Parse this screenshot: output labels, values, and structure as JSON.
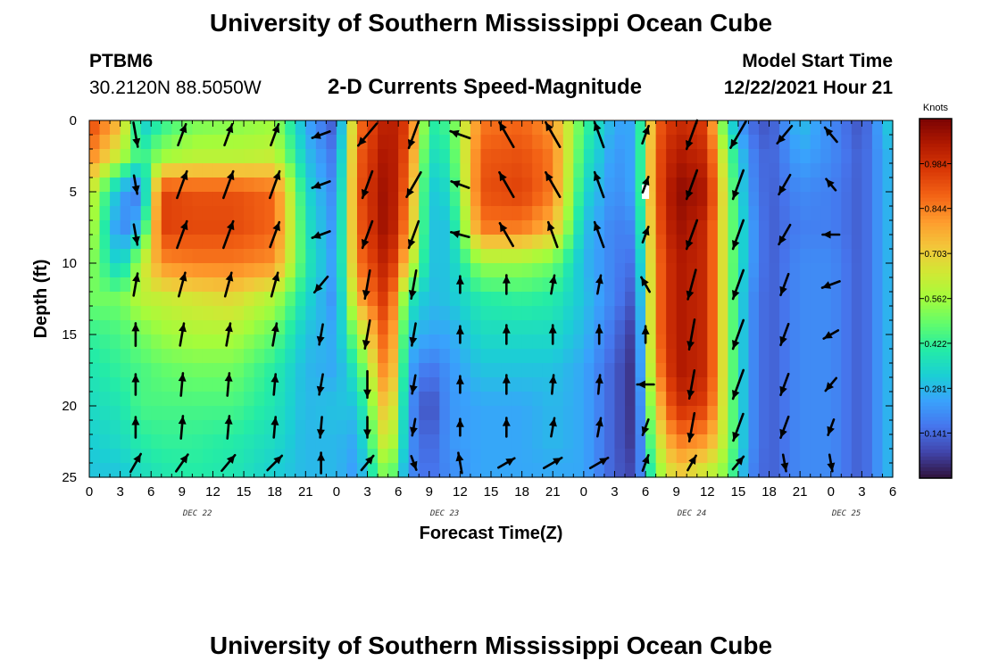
{
  "header": {
    "title": "University of Southern Mississippi Ocean Cube",
    "station": "PTBM6",
    "coords": "30.2120N  88.5050W",
    "subtitle": "2-D Currents Speed-Magnitude",
    "model_label": "Model Start Time",
    "model_time": "12/22/2021 Hour 21"
  },
  "footer": {
    "title": "University of Southern Mississippi Ocean Cube"
  },
  "colors": {
    "colormap": [
      "#30123b",
      "#4145ab",
      "#4675ed",
      "#39a2fc",
      "#1bcfd4",
      "#24eca6",
      "#61fc6c",
      "#a4fc3b",
      "#d1e834",
      "#f3c63a",
      "#fe9b2d",
      "#f36315",
      "#d93806",
      "#b11901",
      "#7a0403"
    ]
  },
  "chart_data": {
    "type": "heatmap",
    "title": "2-D Currents Speed-Magnitude",
    "xlabel": "Forecast Time(Z)",
    "ylabel": "Depth (ft)",
    "colorbar_label": "Knots",
    "xlim": [
      0,
      78
    ],
    "ylim": [
      0,
      25
    ],
    "y_inverted": true,
    "x_tick_hours": [
      0,
      3,
      6,
      9,
      12,
      15,
      18,
      21,
      24,
      27,
      30,
      33,
      36,
      39,
      42,
      45,
      48,
      51,
      54,
      57,
      60,
      63,
      66,
      69,
      72,
      75,
      78
    ],
    "x_tick_labels": [
      "0",
      "3",
      "6",
      "9",
      "12",
      "15",
      "18",
      "21",
      "0",
      "3",
      "6",
      "9",
      "12",
      "15",
      "18",
      "21",
      "0",
      "3",
      "6",
      "9",
      "12",
      "15",
      "18",
      "21",
      "0",
      "3",
      "6"
    ],
    "y_ticks": [
      0,
      5,
      10,
      15,
      20,
      25
    ],
    "day_labels": [
      {
        "hour": 10.5,
        "label": "DEC 22"
      },
      {
        "hour": 34.5,
        "label": "DEC 23"
      },
      {
        "hour": 58.5,
        "label": "DEC 24"
      },
      {
        "hour": 73.5,
        "label": "DEC 25"
      }
    ],
    "colorbar": {
      "min": 0.0,
      "max": 1.125,
      "ticks": [
        0.141,
        0.281,
        0.422,
        0.562,
        0.703,
        0.844,
        0.984
      ]
    },
    "speed_grid": {
      "hours": [
        0,
        3,
        5,
        7,
        10,
        14,
        18,
        21,
        24,
        26,
        29,
        31,
        33,
        35,
        38,
        42,
        45,
        48,
        51,
        53,
        55,
        57,
        60,
        62,
        64,
        66,
        69,
        72,
        75,
        78
      ],
      "depths": [
        0,
        2.5,
        5,
        7.5,
        10,
        12.5,
        15,
        17.5,
        20,
        22.5,
        25
      ],
      "values": [
        [
          0.95,
          0.75,
          0.3,
          0.4,
          0.5,
          0.52,
          0.55,
          0.25,
          0.1,
          0.85,
          1.05,
          0.95,
          0.4,
          0.45,
          0.85,
          0.88,
          0.8,
          0.45,
          0.25,
          0.25,
          0.88,
          1.0,
          0.95,
          0.35,
          0.15,
          0.1,
          0.3,
          0.2,
          0.1,
          0.35
        ],
        [
          0.85,
          0.6,
          0.4,
          0.55,
          0.6,
          0.6,
          0.62,
          0.3,
          0.15,
          0.88,
          1.08,
          0.9,
          0.35,
          0.4,
          0.9,
          0.92,
          0.85,
          0.4,
          0.22,
          0.25,
          0.9,
          1.05,
          1.0,
          0.5,
          0.2,
          0.12,
          0.25,
          0.2,
          0.12,
          0.3
        ],
        [
          0.65,
          0.25,
          0.15,
          0.95,
          0.92,
          0.92,
          0.88,
          0.35,
          0.18,
          0.9,
          1.1,
          0.85,
          0.3,
          0.35,
          0.92,
          0.95,
          0.85,
          0.35,
          0.2,
          0.25,
          0.9,
          1.1,
          1.05,
          0.55,
          0.22,
          0.12,
          0.2,
          0.18,
          0.12,
          0.3
        ],
        [
          0.62,
          0.18,
          0.3,
          0.95,
          0.93,
          0.93,
          0.88,
          0.38,
          0.2,
          0.88,
          1.1,
          0.8,
          0.3,
          0.3,
          0.85,
          0.85,
          0.75,
          0.3,
          0.18,
          0.2,
          0.88,
          1.08,
          1.0,
          0.55,
          0.25,
          0.12,
          0.18,
          0.18,
          0.12,
          0.3
        ],
        [
          0.55,
          0.3,
          0.6,
          0.82,
          0.85,
          0.85,
          0.82,
          0.4,
          0.22,
          0.85,
          1.05,
          0.7,
          0.3,
          0.3,
          0.55,
          0.55,
          0.5,
          0.28,
          0.18,
          0.15,
          0.85,
          1.05,
          1.0,
          0.55,
          0.25,
          0.12,
          0.2,
          0.2,
          0.12,
          0.3
        ],
        [
          0.5,
          0.5,
          0.6,
          0.62,
          0.65,
          0.68,
          0.58,
          0.35,
          0.2,
          0.75,
          1.0,
          0.4,
          0.28,
          0.3,
          0.4,
          0.42,
          0.4,
          0.3,
          0.18,
          0.1,
          0.85,
          1.05,
          1.0,
          0.55,
          0.22,
          0.12,
          0.2,
          0.2,
          0.12,
          0.3
        ],
        [
          0.42,
          0.45,
          0.5,
          0.55,
          0.58,
          0.58,
          0.48,
          0.3,
          0.25,
          0.55,
          0.95,
          0.3,
          0.25,
          0.25,
          0.35,
          0.35,
          0.35,
          0.28,
          0.15,
          0.05,
          0.85,
          1.05,
          1.0,
          0.55,
          0.22,
          0.12,
          0.2,
          0.2,
          0.12,
          0.3
        ],
        [
          0.38,
          0.42,
          0.45,
          0.48,
          0.5,
          0.5,
          0.4,
          0.28,
          0.25,
          0.4,
          0.9,
          0.25,
          0.15,
          0.22,
          0.3,
          0.3,
          0.3,
          0.25,
          0.12,
          0.04,
          0.8,
          1.05,
          1.0,
          0.55,
          0.22,
          0.12,
          0.2,
          0.2,
          0.12,
          0.3
        ],
        [
          0.35,
          0.38,
          0.45,
          0.45,
          0.45,
          0.45,
          0.38,
          0.28,
          0.3,
          0.3,
          0.8,
          0.22,
          0.08,
          0.22,
          0.25,
          0.25,
          0.28,
          0.25,
          0.12,
          0.04,
          0.7,
          1.0,
          0.95,
          0.55,
          0.22,
          0.12,
          0.2,
          0.2,
          0.12,
          0.3
        ],
        [
          0.32,
          0.35,
          0.4,
          0.42,
          0.42,
          0.4,
          0.35,
          0.28,
          0.28,
          0.25,
          0.7,
          0.22,
          0.12,
          0.22,
          0.25,
          0.25,
          0.28,
          0.25,
          0.12,
          0.05,
          0.6,
          0.85,
          0.8,
          0.55,
          0.22,
          0.12,
          0.2,
          0.2,
          0.12,
          0.3
        ],
        [
          0.3,
          0.3,
          0.35,
          0.38,
          0.4,
          0.38,
          0.32,
          0.28,
          0.28,
          0.22,
          0.55,
          0.2,
          0.15,
          0.2,
          0.25,
          0.25,
          0.25,
          0.25,
          0.12,
          0.08,
          0.5,
          0.7,
          0.6,
          0.5,
          0.2,
          0.12,
          0.2,
          0.2,
          0.12,
          0.3
        ]
      ]
    },
    "vectors": {
      "hours": [
        4.5,
        9,
        13.5,
        18,
        22.5,
        27,
        31.5,
        36,
        40.5,
        45,
        49.5,
        54,
        58.5,
        63,
        67.5,
        72
      ],
      "depths": [
        1,
        4.5,
        8,
        11.5,
        15,
        18.5,
        21.5,
        24
      ],
      "directions_deg": [
        [
          170,
          20,
          20,
          20,
          250,
          220,
          200,
          290,
          330,
          330,
          340,
          20,
          200,
          210,
          220,
          320
        ],
        [
          170,
          20,
          20,
          20,
          250,
          200,
          210,
          290,
          330,
          330,
          340,
          20,
          200,
          200,
          210,
          320
        ],
        [
          170,
          20,
          20,
          20,
          250,
          200,
          200,
          285,
          330,
          340,
          340,
          20,
          200,
          200,
          210,
          270
        ],
        [
          10,
          15,
          15,
          15,
          220,
          190,
          190,
          0,
          0,
          10,
          10,
          330,
          195,
          200,
          200,
          250
        ],
        [
          0,
          10,
          10,
          10,
          190,
          190,
          190,
          0,
          0,
          0,
          0,
          0,
          190,
          200,
          200,
          240
        ],
        [
          0,
          5,
          5,
          5,
          190,
          180,
          190,
          0,
          0,
          5,
          5,
          270,
          190,
          200,
          200,
          220
        ],
        [
          0,
          5,
          5,
          5,
          185,
          180,
          190,
          0,
          0,
          10,
          10,
          200,
          190,
          200,
          200,
          200
        ],
        [
          30,
          35,
          40,
          45,
          0,
          40,
          160,
          350,
          60,
          60,
          60,
          20,
          30,
          40,
          170,
          170
        ]
      ],
      "magnitudes": [
        [
          0.7,
          0.6,
          0.6,
          0.6,
          0.4,
          0.9,
          0.9,
          0.5,
          0.9,
          0.9,
          0.8,
          0.4,
          1.0,
          1.0,
          0.6,
          0.4
        ],
        [
          0.4,
          0.9,
          0.9,
          0.9,
          0.4,
          0.9,
          0.9,
          0.4,
          0.9,
          0.9,
          0.8,
          0.3,
          1.0,
          1.0,
          0.6,
          0.2
        ],
        [
          0.5,
          0.9,
          0.9,
          0.8,
          0.4,
          0.9,
          0.9,
          0.4,
          0.8,
          0.8,
          0.8,
          0.3,
          1.0,
          1.0,
          0.6,
          0.3
        ],
        [
          0.6,
          0.7,
          0.7,
          0.7,
          0.5,
          0.9,
          0.9,
          0.3,
          0.4,
          0.4,
          0.4,
          0.3,
          1.0,
          1.0,
          0.6,
          0.4
        ],
        [
          0.6,
          0.6,
          0.6,
          0.6,
          0.5,
          0.9,
          0.6,
          0.3,
          0.4,
          0.4,
          0.4,
          0.3,
          1.0,
          1.0,
          0.6,
          0.3
        ],
        [
          0.5,
          0.6,
          0.6,
          0.5,
          0.5,
          0.8,
          0.4,
          0.3,
          0.4,
          0.4,
          0.4,
          0.3,
          0.9,
          1.0,
          0.6,
          0.3
        ],
        [
          0.5,
          0.6,
          0.6,
          0.5,
          0.5,
          0.5,
          0.3,
          0.3,
          0.4,
          0.4,
          0.4,
          0.3,
          0.9,
          0.9,
          0.6,
          0.3
        ],
        [
          0.5,
          0.5,
          0.5,
          0.5,
          0.5,
          0.4,
          0.2,
          0.5,
          0.4,
          0.5,
          0.5,
          0.3,
          0.3,
          0.3,
          0.3,
          0.3
        ]
      ]
    },
    "missing_cells": [
      {
        "hour": 54,
        "depth": 5
      }
    ]
  }
}
